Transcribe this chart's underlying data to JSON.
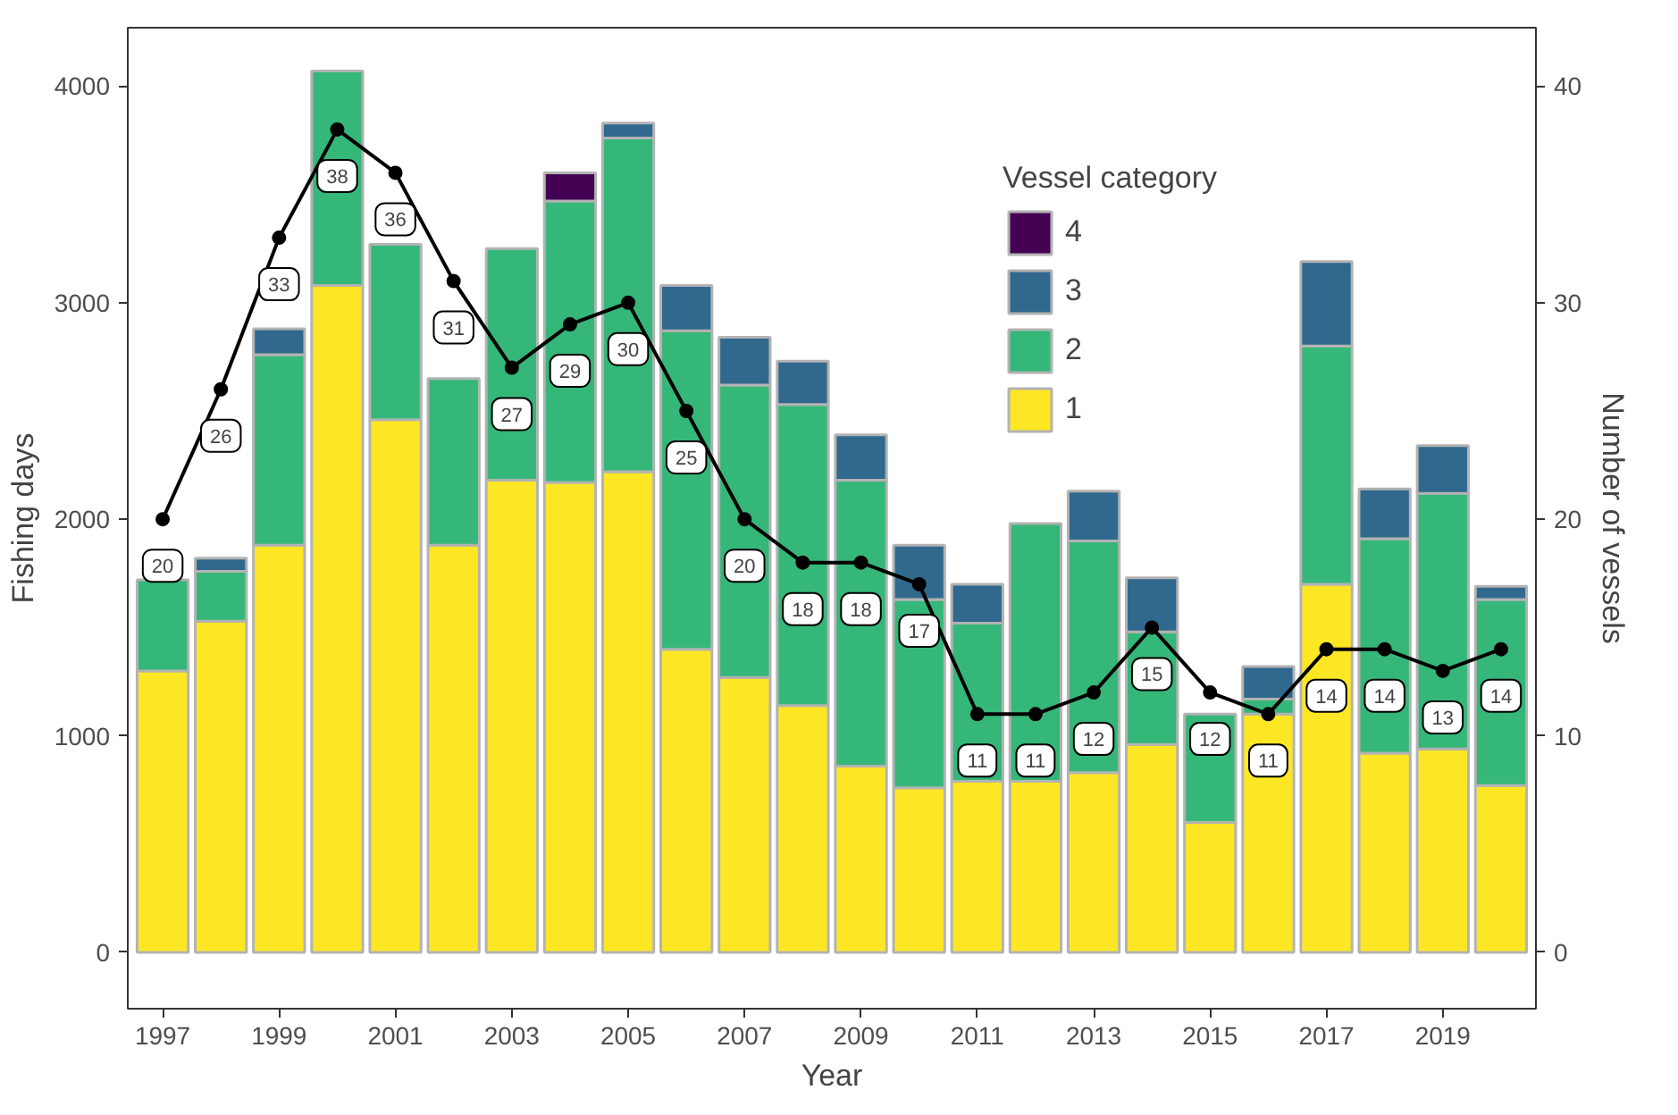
{
  "chart_data": {
    "type": "bar",
    "stacked": true,
    "xlabel": "Year",
    "ylabel": "Fishing days",
    "y2label": "Number of vessels",
    "legend_title": "Vessel category",
    "legend": "top right",
    "grid": false,
    "x": [
      1997,
      1998,
      1999,
      2000,
      2001,
      2002,
      2003,
      2004,
      2005,
      2006,
      2007,
      2008,
      2009,
      2010,
      2011,
      2012,
      2013,
      2014,
      2015,
      2016,
      2017,
      2018,
      2019,
      2020
    ],
    "xlim": [
      1996.4,
      2020.6
    ],
    "xticks": [
      1997,
      1999,
      2001,
      2003,
      2005,
      2007,
      2009,
      2011,
      2013,
      2015,
      2017,
      2019
    ],
    "ylim": [
      -260,
      4270
    ],
    "yticks": [
      0,
      1000,
      2000,
      3000,
      4000
    ],
    "y2lim": [
      -2.6,
      42.7
    ],
    "y2ticks": [
      0,
      10,
      20,
      30,
      40
    ],
    "series": [
      {
        "name": "1",
        "color": "#fde725",
        "values": [
          1300,
          1530,
          1880,
          3080,
          2460,
          1880,
          2180,
          2170,
          2220,
          1400,
          1270,
          1140,
          860,
          760,
          790,
          790,
          830,
          960,
          600,
          1100,
          1700,
          920,
          940,
          770
        ]
      },
      {
        "name": "2",
        "color": "#35b779",
        "values": [
          420,
          230,
          880,
          990,
          810,
          770,
          1070,
          1300,
          1540,
          1470,
          1350,
          1390,
          1320,
          870,
          730,
          1190,
          1070,
          520,
          500,
          70,
          1100,
          990,
          1180,
          860
        ]
      },
      {
        "name": "3",
        "color": "#31688e",
        "values": [
          null,
          60,
          120,
          null,
          null,
          null,
          null,
          null,
          70,
          210,
          220,
          200,
          210,
          250,
          180,
          null,
          230,
          250,
          null,
          150,
          390,
          230,
          220,
          60
        ]
      },
      {
        "name": "4",
        "color": "#440154",
        "values": [
          null,
          null,
          null,
          null,
          null,
          null,
          null,
          130,
          null,
          null,
          null,
          null,
          null,
          null,
          null,
          null,
          null,
          null,
          null,
          null,
          null,
          null,
          null,
          null
        ]
      },
      {
        "type": "line",
        "axis": "y2",
        "color": "#000000",
        "marker": "circle",
        "line_style": "solid",
        "values": [
          20,
          26,
          33,
          38,
          36,
          31,
          27,
          29,
          30,
          25,
          20,
          18,
          18,
          17,
          11,
          11,
          12,
          15,
          12,
          11,
          14,
          14,
          13,
          14
        ],
        "value_labels": [
          "20",
          "26",
          "33",
          "38",
          "36",
          "31",
          "27",
          "29",
          "30",
          "25",
          "20",
          "18",
          "18",
          "17",
          "11",
          "11",
          "12",
          "15",
          "12",
          "11",
          "14",
          "14",
          "13",
          "14"
        ]
      }
    ]
  }
}
